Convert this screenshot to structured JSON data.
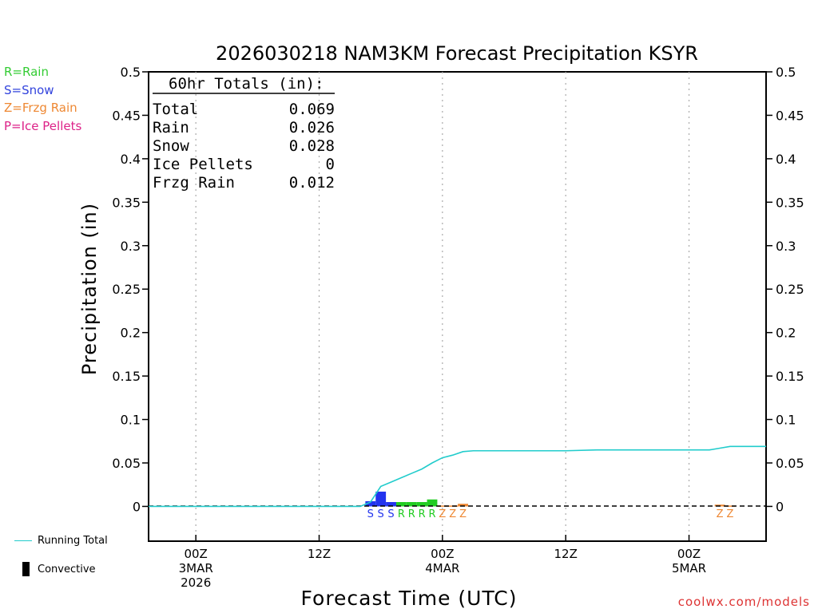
{
  "chart_data": {
    "type": "bar",
    "title": "2026030218 NAM3KM Forecast Precipitation KSYR",
    "xlabel": "Forecast Time (UTC)",
    "ylabel": "Precipitation (in)",
    "ylim": [
      -0.04,
      0.5
    ],
    "yticks": [
      "0.5",
      "0.45",
      "0.4",
      "0.35",
      "0.3",
      "0.25",
      "0.2",
      "0.15",
      "0.1",
      "0.05",
      "0"
    ],
    "x_unit": "hours after 00Z 3MAR",
    "xlim": [
      -4.6,
      55.5
    ],
    "xticks": [
      {
        "hour": 0,
        "lines": [
          "00Z",
          "3MAR",
          "2026"
        ]
      },
      {
        "hour": 12,
        "lines": [
          "12Z"
        ]
      },
      {
        "hour": 24,
        "lines": [
          "00Z",
          "4MAR"
        ]
      },
      {
        "hour": 36,
        "lines": [
          "12Z"
        ]
      },
      {
        "hour": 48,
        "lines": [
          "00Z",
          "5MAR"
        ]
      }
    ],
    "totals_box": {
      "heading": "60hr Totals (in):",
      "rows": [
        {
          "label": "Total",
          "value": "0.069"
        },
        {
          "label": "Rain",
          "value": "0.026"
        },
        {
          "label": "Snow",
          "value": "0.028"
        },
        {
          "label": "Ice Pellets",
          "value": "0"
        },
        {
          "label": "Frzg Rain",
          "value": "0.012"
        }
      ]
    },
    "type_legend": [
      {
        "label": "R=Rain",
        "color": "#33cc33"
      },
      {
        "label": "S=Snow",
        "color": "#3344dd"
      },
      {
        "label": "Z=Frzg Rain",
        "color": "#ee8833"
      },
      {
        "label": "P=Ice Pellets",
        "color": "#dd2288"
      }
    ],
    "series": [
      {
        "name": "Snow",
        "color": "#2233ee",
        "letter": "S",
        "bars": [
          {
            "hour": 17,
            "value": 0.006
          },
          {
            "hour": 18,
            "value": 0.017
          },
          {
            "hour": 19,
            "value": 0.005
          }
        ]
      },
      {
        "name": "Rain",
        "color": "#22cc22",
        "letter": "R",
        "bars": [
          {
            "hour": 20,
            "value": 0.005
          },
          {
            "hour": 21,
            "value": 0.005
          },
          {
            "hour": 22,
            "value": 0.005
          },
          {
            "hour": 23,
            "value": 0.008
          }
        ]
      },
      {
        "name": "Frzg Rain",
        "color": "#ee8833",
        "letter": "Z",
        "bars": [
          {
            "hour": 24,
            "value": 0.001
          },
          {
            "hour": 25,
            "value": 0.001
          },
          {
            "hour": 26,
            "value": 0.003
          },
          {
            "hour": 51,
            "value": 0.002
          },
          {
            "hour": 52,
            "value": 0.001
          }
        ]
      }
    ],
    "running_total": {
      "name": "Running Total",
      "color": "#22cccc",
      "x": [
        -5,
        16,
        17,
        18,
        19,
        20,
        21,
        22,
        23,
        24,
        25,
        26,
        27,
        30,
        36,
        39,
        42,
        45,
        48,
        50,
        51,
        52,
        53,
        55.5
      ],
      "y": [
        0,
        0,
        0.005,
        0.023,
        0.028,
        0.033,
        0.038,
        0.043,
        0.05,
        0.056,
        0.059,
        0.063,
        0.064,
        0.064,
        0.064,
        0.065,
        0.065,
        0.065,
        0.065,
        0.065,
        0.067,
        0.069,
        0.069,
        0.069
      ]
    },
    "bottom_legend": [
      {
        "label": "Running Total",
        "color": "#22cccc"
      },
      {
        "label": "Convective",
        "color": "#000000"
      }
    ]
  },
  "credit": "coolwx.com/models"
}
